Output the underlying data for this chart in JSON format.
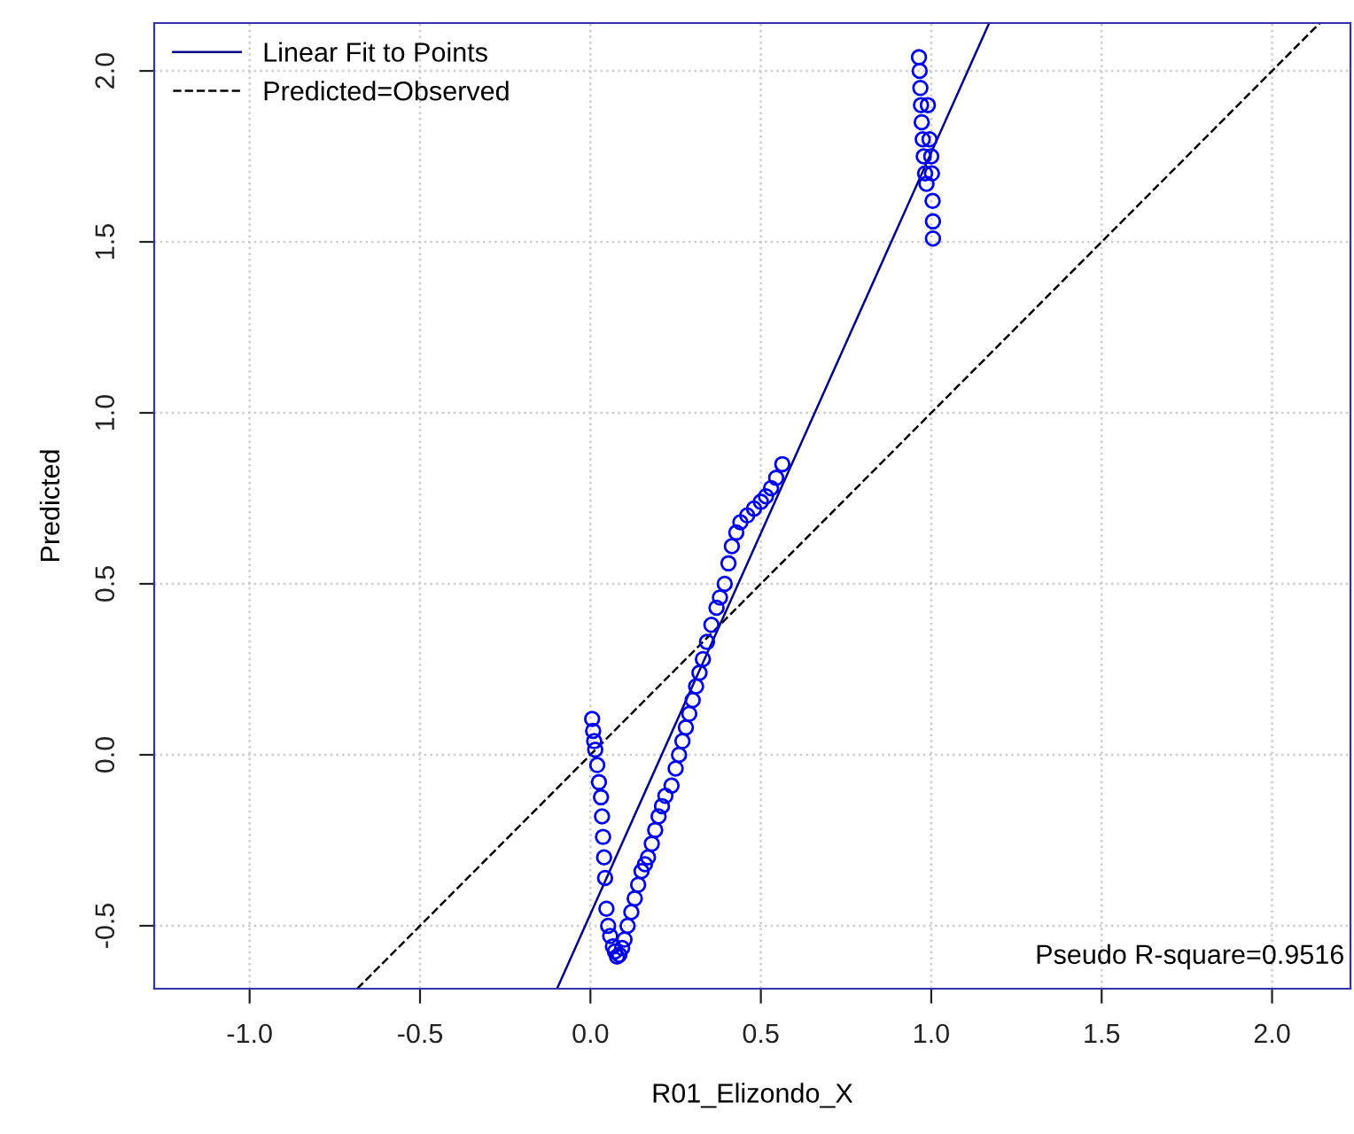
{
  "chart_data": {
    "type": "scatter",
    "xlabel": "R01_Elizondo_X",
    "ylabel": "Predicted",
    "xlim": [
      -1.28,
      2.23
    ],
    "ylim": [
      -0.684,
      2.14
    ],
    "xticks": [
      {
        "value": -1,
        "label": "-1.0"
      },
      -0.5,
      {
        "value": 0,
        "label": "0.0"
      },
      0.5,
      {
        "value": 1,
        "label": "1.0"
      },
      1.5,
      {
        "value": 2,
        "label": "2.0"
      }
    ],
    "yticks": [
      -0.5,
      {
        "value": 0,
        "label": "0.0"
      },
      0.5,
      {
        "value": 1,
        "label": "1.0"
      },
      1.5,
      {
        "value": 2,
        "label": "2.0"
      }
    ],
    "grid": true,
    "legend": "top left",
    "annotations": [
      "Pseudo R-square=0.9516"
    ],
    "series": [
      {
        "color": "#0000ee",
        "marker": "circle",
        "x": [
          0.005,
          0.008,
          0.011,
          0.014,
          0.02,
          0.025,
          0.031,
          0.034,
          0.037,
          0.04,
          0.043,
          0.047,
          0.052,
          0.058,
          0.066,
          0.072,
          0.078,
          0.085,
          0.093,
          0.1,
          0.109,
          0.12,
          0.13,
          0.14,
          0.15,
          0.16,
          0.169,
          0.18,
          0.19,
          0.2,
          0.21,
          0.22,
          0.238,
          0.25,
          0.26,
          0.27,
          0.28,
          0.29,
          0.3,
          0.31,
          0.32,
          0.33,
          0.342,
          0.355,
          0.37,
          0.38,
          0.394,
          0.405,
          0.415,
          0.428,
          0.44,
          0.46,
          0.48,
          0.5,
          0.515,
          0.53,
          0.545,
          0.563,
          0.964,
          0.966,
          0.968,
          0.97,
          0.972,
          0.975,
          0.978,
          0.982,
          0.986,
          0.99,
          0.995,
          1.0,
          1.002,
          1.004,
          1.005,
          1.005
        ],
        "values": [
          0.105,
          0.07,
          0.04,
          0.015,
          -0.03,
          -0.08,
          -0.124,
          -0.18,
          -0.24,
          -0.3,
          -0.36,
          -0.45,
          -0.5,
          -0.53,
          -0.56,
          -0.575,
          -0.59,
          -0.585,
          -0.565,
          -0.54,
          -0.5,
          -0.46,
          -0.42,
          -0.38,
          -0.34,
          -0.32,
          -0.3,
          -0.26,
          -0.22,
          -0.18,
          -0.15,
          -0.12,
          -0.09,
          -0.04,
          0.0,
          0.04,
          0.08,
          0.12,
          0.16,
          0.2,
          0.24,
          0.28,
          0.33,
          0.38,
          0.43,
          0.46,
          0.5,
          0.56,
          0.61,
          0.65,
          0.68,
          0.7,
          0.72,
          0.74,
          0.756,
          0.78,
          0.81,
          0.85,
          2.04,
          2.0,
          1.95,
          1.9,
          1.85,
          1.8,
          1.75,
          1.7,
          1.67,
          1.9,
          1.8,
          1.75,
          1.7,
          1.62,
          1.56,
          1.51
        ]
      },
      {
        "type": "line",
        "name": "Linear Fit to Points",
        "color": "#00008b",
        "line_style": "solid",
        "x": [
          -0.098,
          1.17
        ],
        "values": [
          -0.684,
          2.14
        ]
      },
      {
        "type": "line",
        "name": "Predicted=Observed",
        "color": "#000000",
        "line_style": "dashed",
        "x": [
          -0.684,
          2.14
        ],
        "values": [
          -0.684,
          2.14
        ]
      }
    ]
  }
}
